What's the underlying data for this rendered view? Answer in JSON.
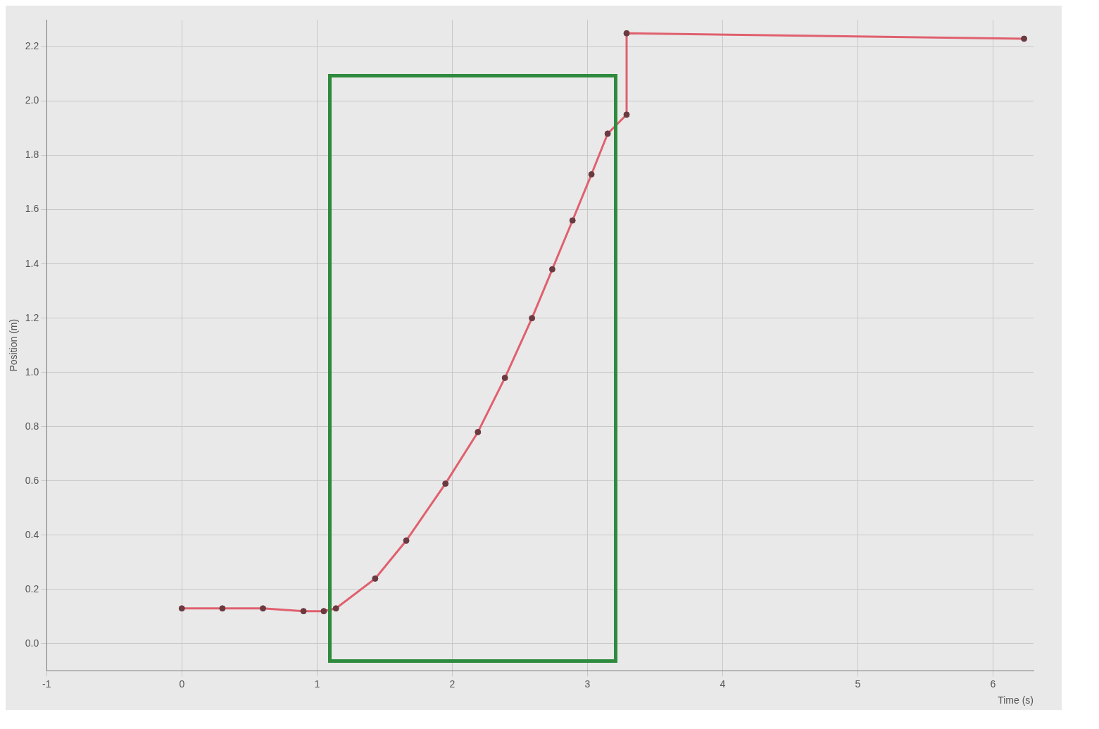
{
  "chart_data": {
    "type": "line",
    "xlabel": "Time (s)",
    "ylabel": "Position (m)",
    "series": [
      {
        "color": "#e0606e",
        "x": [
          0,
          0.3,
          0.6,
          0.9,
          1.05,
          1.14,
          1.43,
          1.66,
          1.95,
          2.19,
          2.39,
          2.59,
          2.74,
          2.89,
          3.03,
          3.15,
          3.29,
          3.29,
          6.23
        ],
        "values": [
          0.13,
          0.13,
          0.13,
          0.12,
          0.12,
          0.13,
          0.24,
          0.38,
          0.59,
          0.78,
          0.98,
          1.2,
          1.38,
          1.56,
          1.73,
          1.88,
          1.95,
          2.25,
          2.23
        ]
      }
    ],
    "xlim": [
      -1,
      6.3
    ],
    "xticks": [
      -1,
      0,
      1,
      2,
      3,
      4,
      5,
      6
    ],
    "ylim": [
      -0.1,
      2.3
    ],
    "yticks": [
      {
        "value": 0,
        "label": "0.0"
      },
      {
        "value": 0.2,
        "label": "0.2"
      },
      {
        "value": 0.4,
        "label": "0.4"
      },
      {
        "value": 0.6,
        "label": "0.6"
      },
      {
        "value": 0.8,
        "label": "0.8"
      },
      {
        "value": 1,
        "label": "1.0"
      },
      {
        "value": 1.2,
        "label": "1.2"
      },
      {
        "value": 1.4,
        "label": "1.4"
      },
      {
        "value": 1.6,
        "label": "1.6"
      },
      {
        "value": 1.8,
        "label": "1.8"
      },
      {
        "value": 2,
        "label": "2.0"
      },
      {
        "value": 2.2,
        "label": "2.2"
      }
    ],
    "grid": true,
    "legend": false,
    "marker": "circle",
    "line_style": "solid"
  }
}
